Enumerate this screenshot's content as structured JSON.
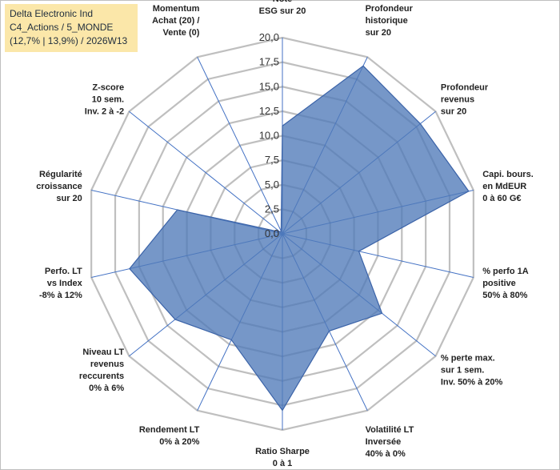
{
  "title_lines": [
    "Delta Electronic Ind",
    "C4_Actions / 5_MONDE",
    "(12,7% | 13,9%) / 2026W13"
  ],
  "colors": {
    "fill": "#4f7ab8",
    "fill_opacity": 0.78,
    "stroke": "#3b63a8",
    "grid": "#bfbfbf",
    "spoke": "#4472c4"
  },
  "chart_data": {
    "type": "radar",
    "title": "Delta Electronic Ind",
    "rmin": 0,
    "rmax": 20,
    "ticks": [
      "0,0",
      "2,5",
      "5,0",
      "7,5",
      "10,0",
      "12,5",
      "15,0",
      "17,5",
      "20,0"
    ],
    "grid": true,
    "categories": [
      [
        "Note",
        "ESG sur 20"
      ],
      [
        "Profondeur",
        "historique",
        "sur 20"
      ],
      [
        "Profondeur",
        "revenus",
        "sur 20"
      ],
      [
        "Capi. bours.",
        "en MdEUR",
        "0 à 60 G€"
      ],
      [
        "% perfo 1A",
        "positive",
        "50% à 80%"
      ],
      [
        "% perte max.",
        "sur 1 sem.",
        "Inv. 50% à 20%"
      ],
      [
        "Volatilité LT",
        "Inversée",
        "40% à 0%"
      ],
      [
        "Ratio Sharpe",
        "0 à 1"
      ],
      [
        "Rendement LT",
        "0% à 20%"
      ],
      [
        "Niveau LT",
        "revenus",
        "reccurents",
        "0% à 6%"
      ],
      [
        "Perfo. LT",
        "vs Index",
        "-8% à 12%"
      ],
      [
        "Régularité",
        "croissance",
        "sur 20"
      ],
      [
        "Z-score",
        "10 sem.",
        "Inv. 2 à -2"
      ],
      [
        "Momentum",
        "Achat (20) /",
        "Vente (0)"
      ]
    ],
    "values": [
      11,
      19,
      18,
      19.5,
      8,
      13,
      11,
      18,
      12,
      14,
      16,
      11,
      0.3,
      0.3
    ]
  }
}
